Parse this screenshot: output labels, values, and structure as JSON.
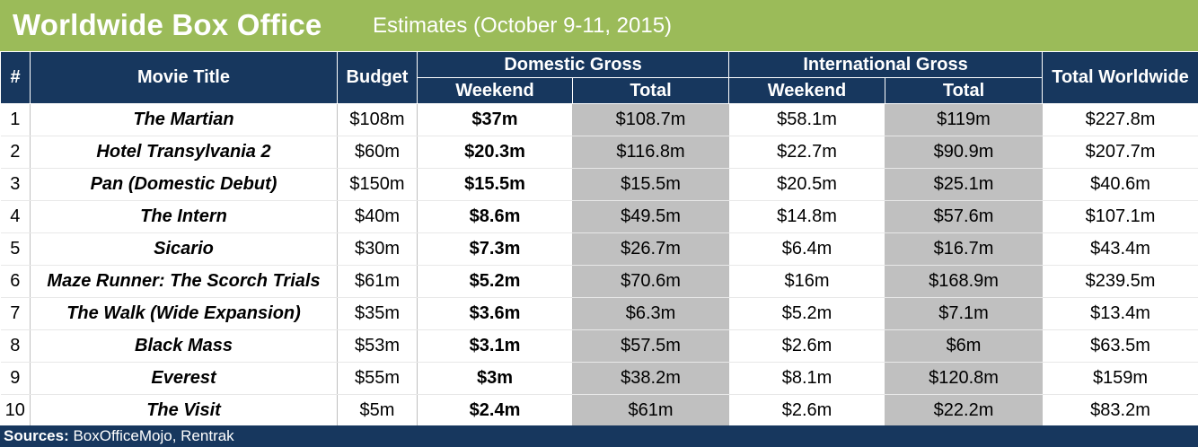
{
  "header": {
    "title": "Worldwide Box Office",
    "subtitle": "Estimates (October 9-11, 2015)"
  },
  "columns": {
    "rank": "#",
    "movie": "Movie Title",
    "budget": "Budget",
    "domestic_group": "Domestic Gross",
    "international_group": "International Gross",
    "total_worldwide": "Total Worldwide",
    "weekend": "Weekend",
    "total": "Total"
  },
  "rows": [
    {
      "rank": "1",
      "title": "The Martian",
      "budget": "$108m",
      "dom_weekend": "$37m",
      "dom_total": "$108.7m",
      "intl_weekend": "$58.1m",
      "intl_total": "$119m",
      "worldwide": "$227.8m"
    },
    {
      "rank": "2",
      "title": "Hotel Transylvania 2",
      "budget": "$60m",
      "dom_weekend": "$20.3m",
      "dom_total": "$116.8m",
      "intl_weekend": "$22.7m",
      "intl_total": "$90.9m",
      "worldwide": "$207.7m"
    },
    {
      "rank": "3",
      "title": "Pan (Domestic Debut)",
      "budget": "$150m",
      "dom_weekend": "$15.5m",
      "dom_total": "$15.5m",
      "intl_weekend": "$20.5m",
      "intl_total": "$25.1m",
      "worldwide": "$40.6m"
    },
    {
      "rank": "4",
      "title": "The Intern",
      "budget": "$40m",
      "dom_weekend": "$8.6m",
      "dom_total": "$49.5m",
      "intl_weekend": "$14.8m",
      "intl_total": "$57.6m",
      "worldwide": "$107.1m"
    },
    {
      "rank": "5",
      "title": "Sicario",
      "budget": "$30m",
      "dom_weekend": "$7.3m",
      "dom_total": "$26.7m",
      "intl_weekend": "$6.4m",
      "intl_total": "$16.7m",
      "worldwide": "$43.4m"
    },
    {
      "rank": "6",
      "title": "Maze Runner: The Scorch Trials",
      "budget": "$61m",
      "dom_weekend": "$5.2m",
      "dom_total": "$70.6m",
      "intl_weekend": "$16m",
      "intl_total": "$168.9m",
      "worldwide": "$239.5m"
    },
    {
      "rank": "7",
      "title": "The Walk (Wide Expansion)",
      "budget": "$35m",
      "dom_weekend": "$3.6m",
      "dom_total": "$6.3m",
      "intl_weekend": "$5.2m",
      "intl_total": "$7.1m",
      "worldwide": "$13.4m"
    },
    {
      "rank": "8",
      "title": "Black Mass",
      "budget": "$53m",
      "dom_weekend": "$3.1m",
      "dom_total": "$57.5m",
      "intl_weekend": "$2.6m",
      "intl_total": "$6m",
      "worldwide": "$63.5m"
    },
    {
      "rank": "9",
      "title": "Everest",
      "budget": "$55m",
      "dom_weekend": "$3m",
      "dom_total": "$38.2m",
      "intl_weekend": "$8.1m",
      "intl_total": "$120.8m",
      "worldwide": "$159m"
    },
    {
      "rank": "10",
      "title": "The Visit",
      "budget": "$5m",
      "dom_weekend": "$2.4m",
      "dom_total": "$61m",
      "intl_weekend": "$2.6m",
      "intl_total": "$22.2m",
      "worldwide": "$83.2m"
    }
  ],
  "footer": {
    "label": "Sources:",
    "text": " BoxOfficeMojo, Rentrak"
  },
  "colors": {
    "title_bar": "#9bbb59",
    "header_bg": "#17375e",
    "shaded_cell": "#c0c0c0"
  }
}
